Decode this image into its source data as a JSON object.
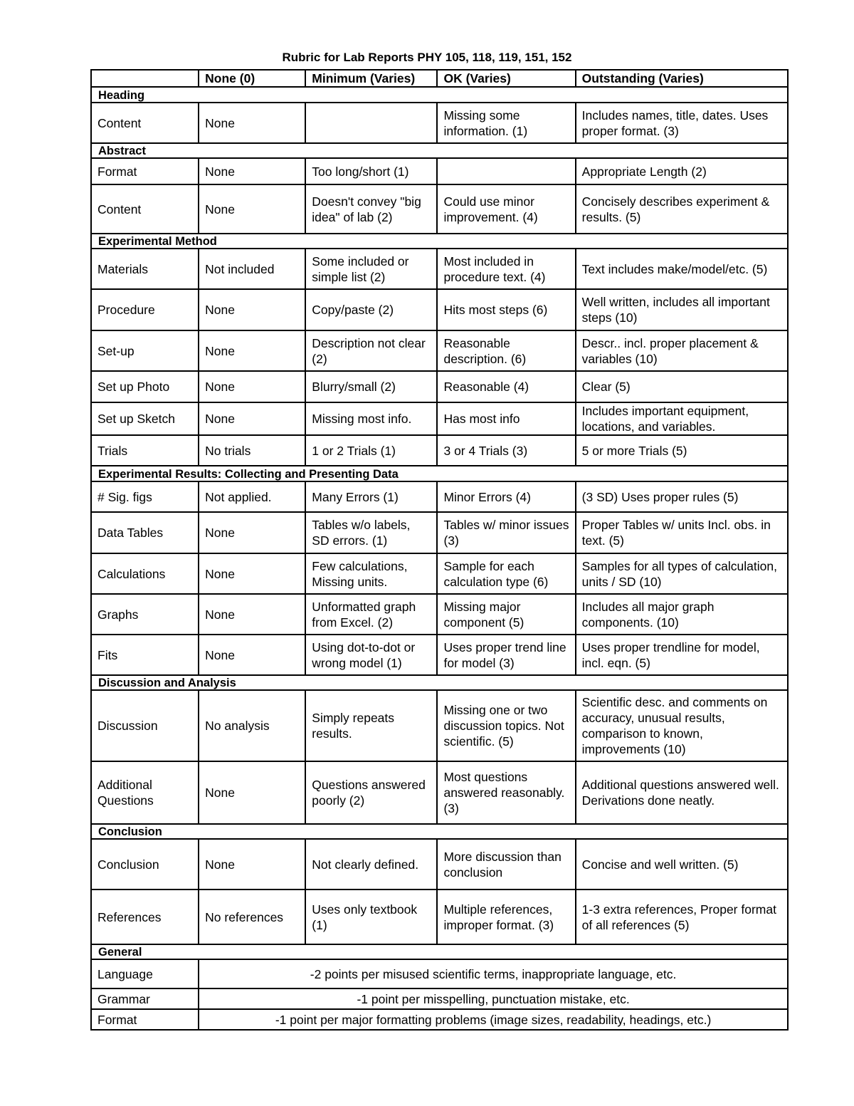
{
  "title": "Rubric for Lab Reports PHY 105, 118, 119, 151, 152",
  "columns": [
    "",
    "None (0)",
    "Minimum (Varies)",
    "OK  (Varies)",
    "Outstanding (Varies)"
  ],
  "sections": [
    {
      "name": "Heading",
      "rows": [
        {
          "cells": [
            "Content",
            "None",
            "",
            "Missing some information.  (1)",
            "Includes names, title, dates. Uses proper format. (3)"
          ]
        }
      ]
    },
    {
      "name": "Abstract",
      "rows": [
        {
          "cells": [
            "Format",
            "None",
            "Too long/short (1)",
            "",
            "Appropriate Length (2)"
          ]
        },
        {
          "cells": [
            "Content",
            "None",
            "Doesn't convey \"big idea\" of lab (2)",
            "Could use minor improvement. (4)",
            "Concisely describes experiment & results. (5)"
          ]
        }
      ]
    },
    {
      "name": "Experimental Method",
      "rows": [
        {
          "cells": [
            "Materials",
            "Not included",
            "Some included or simple list (2)",
            "Most included in procedure text. (4)",
            "Text includes make/model/etc. (5)"
          ]
        },
        {
          "cells": [
            "Procedure",
            "None",
            "Copy/paste (2)",
            "Hits most steps (6)",
            "Well written, includes all important steps (10)"
          ]
        },
        {
          "cells": [
            "Set-up",
            "None",
            "Description not clear (2)",
            "Reasonable description. (6)",
            "Descr.. incl. proper placement & variables (10)"
          ]
        },
        {
          "cells": [
            "Set up Photo",
            "None",
            "Blurry/small (2)",
            "Reasonable (4)",
            "Clear (5)"
          ]
        },
        {
          "cells": [
            "Set up Sketch",
            "None",
            "Missing most info.",
            "Has most info",
            "Includes important equipment, locations, and variables."
          ]
        },
        {
          "cells": [
            "Trials",
            "No trials",
            "1 or 2 Trials (1)",
            "3 or 4 Trials (3)",
            "5 or more Trials (5)"
          ]
        }
      ]
    },
    {
      "name": "Experimental Results:  Collecting and Presenting Data",
      "rows": [
        {
          "cells": [
            "# Sig. figs",
            "Not applied.",
            "Many Errors (1)",
            "Minor Errors (4)",
            "(3 SD) Uses proper rules (5)"
          ]
        },
        {
          "cells": [
            "Data Tables",
            "None",
            "Tables w/o labels, SD errors. (1)",
            "Tables w/ minor issues (3)",
            "Proper Tables w/ units Incl. obs. in text. (5)"
          ]
        },
        {
          "cells": [
            "Calculations",
            "None",
            "Few calculations, Missing units.",
            "Sample for each calculation type (6)",
            "Samples for all types of calculation, units / SD (10)"
          ]
        },
        {
          "cells": [
            "Graphs",
            "None",
            "Unformatted graph from Excel. (2)",
            "Missing major component (5)",
            "Includes all major graph components. (10)"
          ]
        },
        {
          "cells": [
            "Fits",
            "None",
            "Using dot-to-dot or wrong model (1)",
            "Uses proper trend line for model (3)",
            "Uses proper trendline for model, incl. eqn. (5)"
          ]
        }
      ]
    },
    {
      "name": "Discussion and Analysis",
      "rows": [
        {
          "cells": [
            "Discussion",
            "No analysis",
            "Simply repeats results.",
            "Missing one or two discussion topics. Not scientific. (5)",
            "Scientific desc. and comments on accuracy, unusual results, comparison to known, improvements (10)"
          ]
        },
        {
          "cells": [
            "Additional Questions",
            "None",
            "Questions answered poorly (2)",
            "Most questions answered reasonably. (3)",
            "Additional questions answered well.  Derivations done neatly."
          ]
        }
      ]
    },
    {
      "name": "Conclusion",
      "rows": [
        {
          "cells": [
            "Conclusion",
            "None",
            "Not clearly defined.",
            "More discussion than conclusion",
            "Concise and well written. (5)"
          ]
        },
        {
          "cells": [
            "References",
            "No references",
            "Uses only textbook (1)",
            "Multiple references, improper format. (3)",
            "1-3 extra references, Proper format of all references (5)"
          ]
        }
      ]
    },
    {
      "name": "General",
      "rows": [
        {
          "cells": [
            "Language",
            "-2 points per misused scientific terms, inappropriate language, etc."
          ],
          "span": true
        },
        {
          "cells": [
            "Grammar",
            "-1 point per misspelling, punctuation mistake, etc."
          ],
          "span": true
        },
        {
          "cells": [
            "Format",
            "-1 point per major formatting problems (image sizes, readability, headings, etc.)"
          ],
          "span": true
        }
      ]
    }
  ]
}
